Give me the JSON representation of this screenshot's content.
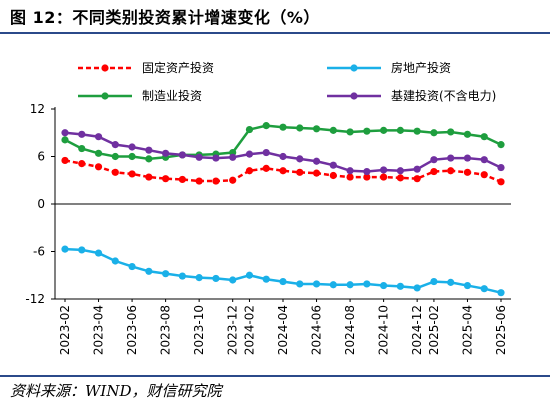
{
  "figure": {
    "title": "图 12：不同类别投资累计增速变化（%）",
    "source": "资料来源：WIND，财信研究院"
  },
  "chart_data": {
    "type": "line",
    "x": [
      "2023-02",
      "2023-03",
      "2023-04",
      "2023-05",
      "2023-06",
      "2023-07",
      "2023-08",
      "2023-09",
      "2023-10",
      "2023-11",
      "2023-12",
      "2024-02",
      "2024-03",
      "2024-04",
      "2024-05",
      "2024-06",
      "2024-07",
      "2024-08",
      "2024-09",
      "2024-10",
      "2024-11",
      "2024-12",
      "2025-02",
      "2025-03",
      "2025-04",
      "2025-05",
      "2025-06"
    ],
    "x_tick_labels": [
      "2023-02",
      "2023-04",
      "2023-06",
      "2023-08",
      "2023-10",
      "2023-12",
      "2024-02",
      "2024-04",
      "2024-06",
      "2024-08",
      "2024-10",
      "2024-12",
      "2025-02",
      "2025-04",
      "2025-06"
    ],
    "y_ticks": [
      -12,
      -6,
      0,
      6,
      12
    ],
    "ylim": [
      -12,
      12
    ],
    "grid": false,
    "legend_position": "top",
    "series": [
      {
        "name": "固定资产投资",
        "color": "#ff0000",
        "style": "dashed",
        "values": [
          5.5,
          5.1,
          4.7,
          4.0,
          3.8,
          3.4,
          3.2,
          3.1,
          2.9,
          2.9,
          3.0,
          4.2,
          4.5,
          4.2,
          4.0,
          3.9,
          3.6,
          3.4,
          3.4,
          3.4,
          3.3,
          3.2,
          4.1,
          4.2,
          4.0,
          3.7,
          2.8
        ]
      },
      {
        "name": "房地产投资",
        "color": "#1ab0e8",
        "style": "solid",
        "values": [
          -5.7,
          -5.8,
          -6.2,
          -7.2,
          -7.9,
          -8.5,
          -8.8,
          -9.1,
          -9.3,
          -9.4,
          -9.6,
          -9.0,
          -9.5,
          -9.8,
          -10.1,
          -10.1,
          -10.2,
          -10.2,
          -10.1,
          -10.3,
          -10.4,
          -10.6,
          -9.8,
          -9.9,
          -10.3,
          -10.7,
          -11.2
        ]
      },
      {
        "name": "制造业投资",
        "color": "#1e9e3e",
        "style": "solid",
        "values": [
          8.1,
          7.0,
          6.4,
          6.0,
          6.0,
          5.7,
          5.9,
          6.2,
          6.2,
          6.3,
          6.5,
          9.4,
          9.9,
          9.7,
          9.6,
          9.5,
          9.3,
          9.1,
          9.2,
          9.3,
          9.3,
          9.2,
          9.0,
          9.1,
          8.8,
          8.5,
          7.5
        ]
      },
      {
        "name": "基建投资(不含电力)",
        "color": "#7030a0",
        "style": "solid",
        "values": [
          9.0,
          8.8,
          8.5,
          7.5,
          7.2,
          6.8,
          6.4,
          6.2,
          5.9,
          5.8,
          5.9,
          6.3,
          6.5,
          6.0,
          5.7,
          5.4,
          4.9,
          4.2,
          4.1,
          4.3,
          4.2,
          4.4,
          5.6,
          5.8,
          5.8,
          5.6,
          4.6
        ]
      }
    ]
  }
}
